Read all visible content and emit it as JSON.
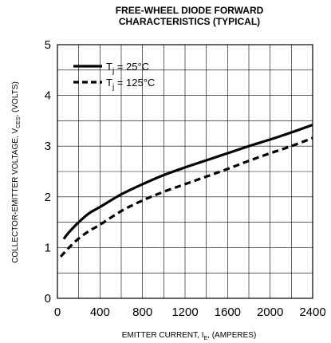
{
  "chart_data": {
    "type": "line",
    "title_line1": "FREE-WHEEL DIODE FORWARD",
    "title_line2": "CHARACTERISTICS (TYPICAL)",
    "xlabel": "EMITTER CURRENT, I",
    "xlabel_sub": "E",
    "xlabel_tail": ", (AMPERES)",
    "ylabel": "COLLECTOR-EMITTER VOLTAGE, V",
    "ylabel_sub": "CES",
    "ylabel_tail": ", (VOLTS)",
    "xlim": [
      0,
      2400
    ],
    "ylim": [
      0,
      5
    ],
    "x_ticks": [
      "0",
      "400",
      "800",
      "1200",
      "1600",
      "2000",
      "2400"
    ],
    "y_ticks": [
      "0",
      "1",
      "2",
      "3",
      "4",
      "5"
    ],
    "grid": true,
    "legend_position": "top-left",
    "series": [
      {
        "name_main": "T",
        "name_sub": "j",
        "name_tail": " = 25°C",
        "style": "solid",
        "color": "#000000",
        "x": [
          60,
          100,
          200,
          300,
          400,
          600,
          800,
          1000,
          1200,
          1400,
          1600,
          1800,
          2000,
          2200,
          2400
        ],
        "y": [
          1.17,
          1.28,
          1.5,
          1.68,
          1.8,
          2.05,
          2.25,
          2.43,
          2.58,
          2.72,
          2.86,
          3.0,
          3.13,
          3.27,
          3.42
        ]
      },
      {
        "name_main": "T",
        "name_sub": "j",
        "name_tail": " = 125°C",
        "style": "dashed",
        "color": "#000000",
        "x": [
          30,
          100,
          200,
          300,
          400,
          600,
          800,
          1000,
          1200,
          1400,
          1600,
          1800,
          2000,
          2200,
          2400
        ],
        "y": [
          0.82,
          0.98,
          1.18,
          1.33,
          1.45,
          1.72,
          1.93,
          2.1,
          2.25,
          2.4,
          2.55,
          2.71,
          2.86,
          3.0,
          3.16
        ]
      }
    ]
  }
}
